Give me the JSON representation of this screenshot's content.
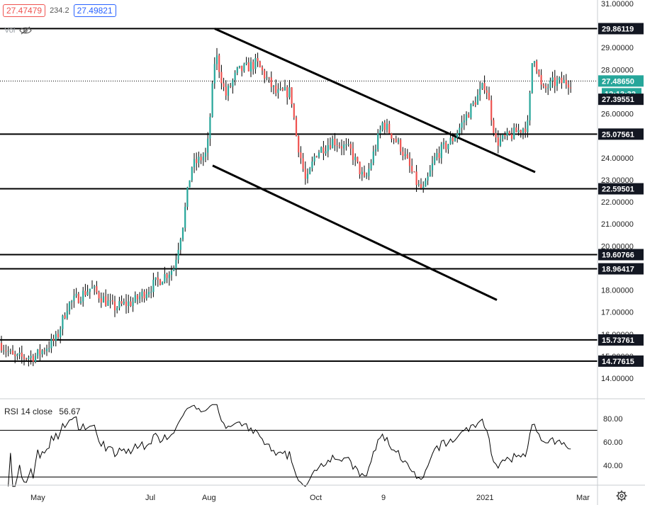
{
  "topbar": {
    "sell_price": "27.47479",
    "spread": "234.2",
    "buy_price": "27.49821"
  },
  "vol_label": "Vol",
  "price_axis": {
    "ticks": [
      "31.00000",
      "29.00000",
      "28.00000",
      "26.00000",
      "24.00000",
      "23.00000",
      "22.00000",
      "21.00000",
      "20.00000",
      "18.00000",
      "17.00000",
      "16.00000",
      "15.00000",
      "14.00000"
    ],
    "tick_values": [
      31,
      29,
      28,
      26,
      24,
      23,
      22,
      21,
      20,
      18,
      17,
      16,
      15,
      14
    ]
  },
  "level_labels": [
    "29.86119",
    "25.07561",
    "22.59501",
    "19.60766",
    "18.96417",
    "15.73761",
    "14.77615"
  ],
  "level_values": [
    29.86119,
    25.07561,
    22.59501,
    19.60766,
    18.96417,
    15.73761,
    14.77615
  ],
  "current_price": {
    "label": "27.48650",
    "value": 27.4865,
    "countdown": "12:13:32"
  },
  "extra_label": {
    "label": "27.39551",
    "value": 27.39551
  },
  "time_axis": [
    "May",
    "Jul",
    "Aug",
    "Oct",
    "9",
    "2021",
    "Mar"
  ],
  "rsi": {
    "title": "RSI 14 close",
    "value": "56.67",
    "ticks": [
      "80.00",
      "60.00",
      "40.00"
    ],
    "tick_values": [
      80,
      60,
      40
    ],
    "upper": 70,
    "lower": 30
  },
  "colors": {
    "up": "#26a69a",
    "down": "#ef5350",
    "level": "#000000",
    "label_bg": "#131722"
  },
  "chart_data": {
    "type": "candlestick",
    "y_range": [
      13.3,
      31.3
    ],
    "levels": [
      29.86119,
      25.07561,
      22.59501,
      19.60766,
      18.96417,
      15.73761,
      14.77615
    ],
    "trendlines": [
      {
        "from": [
          "Aug",
          29.86
        ],
        "to": [
          "Feb",
          23.35
        ]
      },
      {
        "from": [
          "Aug",
          23.65
        ],
        "to": [
          "Dec",
          17.55
        ]
      }
    ],
    "close_keypoints": [
      {
        "x_label": "Apr",
        "close": 15.6
      },
      {
        "x_label": "May",
        "close": 14.9
      },
      {
        "x_label": "May",
        "close": 15.9
      },
      {
        "x_label": "Jun",
        "close": 17.8
      },
      {
        "x_label": "Jun",
        "close": 17.3
      },
      {
        "x_label": "Jul",
        "close": 18.5
      },
      {
        "x_label": "Jul",
        "close": 22.8
      },
      {
        "x_label": "Aug",
        "close": 28.8
      },
      {
        "x_label": "Aug",
        "close": 26.9
      },
      {
        "x_label": "Sep",
        "close": 27.2
      },
      {
        "x_label": "Sep",
        "close": 22.8
      },
      {
        "x_label": "Oct",
        "close": 24.1
      },
      {
        "x_label": "Nov",
        "close": 23.3
      },
      {
        "x_label": "Nov",
        "close": 22.3
      },
      {
        "x_label": "Dec",
        "close": 24.4
      },
      {
        "x_label": "Dec",
        "close": 26.2
      },
      {
        "x_label": "2021",
        "close": 27.4
      },
      {
        "x_label": "2021",
        "close": 25.2
      },
      {
        "x_label": "Feb",
        "close": 29.0
      },
      {
        "x_label": "Feb",
        "close": 27.0
      },
      {
        "x_label": "Feb",
        "close": 27.48
      }
    ]
  }
}
